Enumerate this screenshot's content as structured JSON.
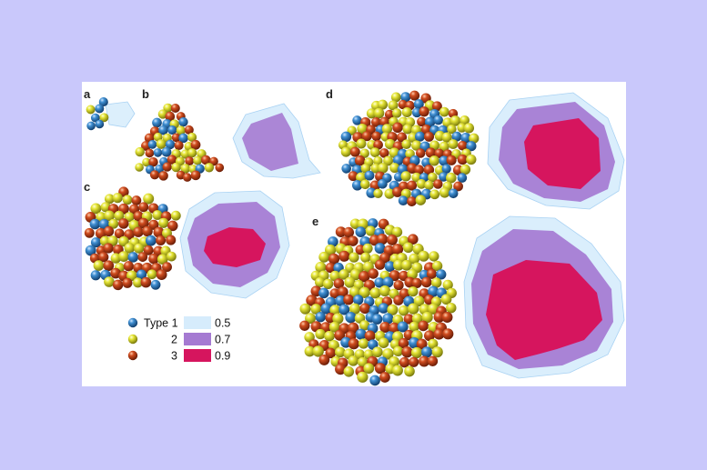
{
  "panel_labels": [
    "a",
    "b",
    "c",
    "d",
    "e"
  ],
  "legend": {
    "atom_types": [
      {
        "label": "Type 1",
        "color": "#2a78b7"
      },
      {
        "label": "2",
        "color": "#dede35"
      },
      {
        "label": "3",
        "color": "#c8461e"
      }
    ],
    "density_levels": [
      {
        "label": "0.5",
        "color": "#d6ecfc"
      },
      {
        "label": "0.7",
        "color": "#a57ad2"
      },
      {
        "label": "0.9",
        "color": "#d6155e"
      }
    ]
  },
  "background_color": "#c9c8fb"
}
